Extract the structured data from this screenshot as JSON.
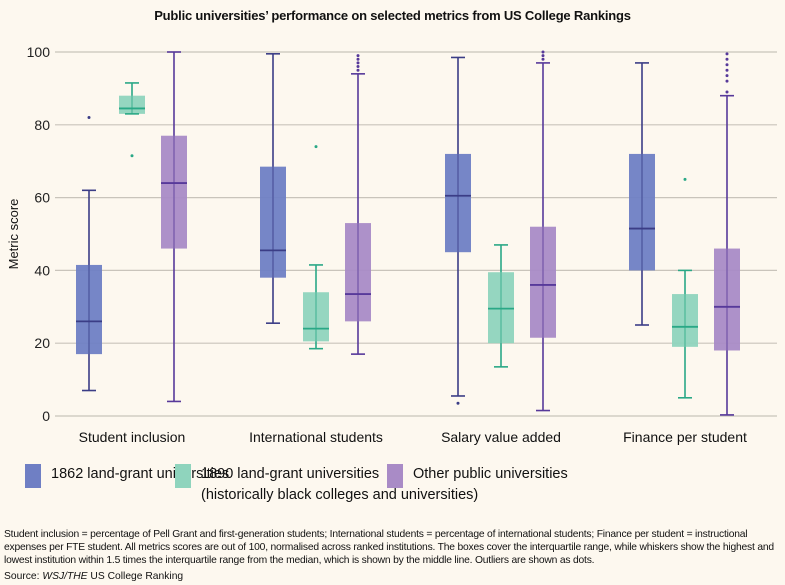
{
  "chart_data": {
    "type": "boxplot",
    "title": "Public universities’ performance on selected metrics from US College Rankings",
    "ylabel": "Metric score",
    "xlabel": "",
    "ylim": [
      0,
      100
    ],
    "yticks": [
      0,
      20,
      40,
      60,
      80,
      100
    ],
    "grid": true,
    "legend_placement": "bottom",
    "categories": [
      "Student inclusion",
      "International students",
      "Salary value added",
      "Finance per student"
    ],
    "series": [
      {
        "name": "1862 land-grant universities",
        "color": "#6f7fc4",
        "line_color": "#3b3d86",
        "boxes": [
          {
            "low": 7,
            "q1": 17,
            "median": 26,
            "q3": 41.5,
            "high": 62,
            "outliers": [
              82
            ]
          },
          {
            "low": 25.5,
            "q1": 38,
            "median": 45.5,
            "q3": 68.5,
            "high": 99.5,
            "outliers": []
          },
          {
            "low": 5.5,
            "q1": 45,
            "median": 60.5,
            "q3": 72,
            "high": 98.5,
            "outliers": [
              3.5
            ]
          },
          {
            "low": 25,
            "q1": 40,
            "median": 51.5,
            "q3": 72,
            "high": 97,
            "outliers": []
          }
        ]
      },
      {
        "name": "1890 land-grant universities",
        "name_line2": "(historically black colleges and universities)",
        "color": "#8fd4bd",
        "line_color": "#2aa886",
        "boxes": [
          {
            "low": 83,
            "q1": 83,
            "median": 84.5,
            "q3": 88,
            "high": 91.5,
            "outliers": [
              71.5
            ]
          },
          {
            "low": 18.5,
            "q1": 20.5,
            "median": 24,
            "q3": 34,
            "high": 41.5,
            "outliers": [
              74
            ]
          },
          {
            "low": 13.5,
            "q1": 20,
            "median": 29.5,
            "q3": 39.5,
            "high": 47,
            "outliers": []
          },
          {
            "low": 5,
            "q1": 19,
            "median": 24.5,
            "q3": 33.5,
            "high": 40,
            "outliers": [
              65
            ]
          }
        ]
      },
      {
        "name": "Other public universities",
        "color": "#a98bc6",
        "line_color": "#57399a",
        "boxes": [
          {
            "low": 4,
            "q1": 46,
            "median": 64,
            "q3": 77,
            "high": 100,
            "outliers": []
          },
          {
            "low": 17,
            "q1": 26,
            "median": 33.5,
            "q3": 53,
            "high": 94,
            "outliers": [
              95,
              96,
              97,
              98,
              99
            ]
          },
          {
            "low": 1.5,
            "q1": 21.5,
            "median": 36,
            "q3": 52,
            "high": 97,
            "outliers": [
              98,
              99,
              100
            ]
          },
          {
            "low": 0.3,
            "q1": 18,
            "median": 30,
            "q3": 46,
            "high": 88,
            "outliers": [
              89,
              92,
              93.5,
              95,
              96.5,
              98,
              99.5
            ]
          }
        ]
      }
    ]
  },
  "notes": "Student inclusion = percentage of Pell Grant and first-generation students; International students = percentage of international students; Finance per student = instructional expenses per FTE student. All metrics scores are out of 100, normalised across ranked institutions. The boxes cover the interquartile range, while whiskers show the highest and lowest institution within 1.5 times the interquartile range from the median, which is shown by the middle line. Outliers are shown as dots.",
  "source": {
    "label": "Source: ",
    "publisher": "WSJ/THE",
    "rest": " US College Ranking"
  }
}
